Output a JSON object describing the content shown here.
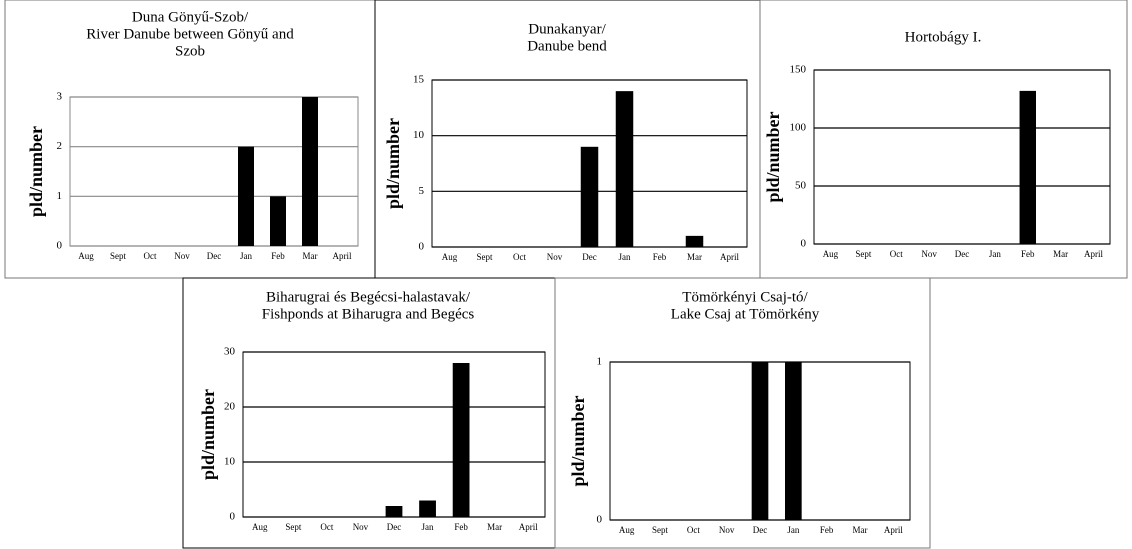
{
  "chart_data": [
    {
      "type": "bar",
      "title": [
        "Duna Gönyű-Szob/",
        "River Danube between Gönyű and",
        "Szob"
      ],
      "ylabel": "pld/number",
      "categories": [
        "Aug",
        "Sept",
        "Oct",
        "Nov",
        "Dec",
        "Jan",
        "Feb",
        "Mar",
        "April"
      ],
      "values": [
        0,
        0,
        0,
        0,
        0,
        2,
        1,
        3,
        0
      ],
      "color": "#000000",
      "ylim": [
        0,
        3
      ],
      "yticks": [
        0,
        1,
        2,
        3
      ],
      "grid": true
    },
    {
      "type": "bar",
      "title": [
        "Dunakanyar/",
        "Danube bend"
      ],
      "ylabel": "pld/number",
      "categories": [
        "Aug",
        "Sept",
        "Oct",
        "Nov",
        "Dec",
        "Jan",
        "Feb",
        "Mar",
        "April"
      ],
      "values": [
        0,
        0,
        0,
        0,
        9,
        14,
        0,
        1,
        0
      ],
      "color": "#000000",
      "ylim": [
        0,
        15
      ],
      "yticks": [
        0,
        5,
        10,
        15
      ],
      "grid": true
    },
    {
      "type": "bar",
      "title": [
        "Hortobágy I."
      ],
      "ylabel": "pld/number",
      "categories": [
        "Aug",
        "Sept",
        "Oct",
        "Nov",
        "Dec",
        "Jan",
        "Feb",
        "Mar",
        "April"
      ],
      "values": [
        0,
        0,
        0,
        0,
        0,
        0,
        132,
        0,
        0
      ],
      "color": "#000000",
      "ylim": [
        0,
        150
      ],
      "yticks": [
        0,
        50,
        100,
        150
      ],
      "grid": true
    },
    {
      "type": "bar",
      "title": [
        "Biharugrai és Begécsi-halastavak/",
        "Fishponds at Biharugra and Begécs"
      ],
      "ylabel": "pld/number",
      "categories": [
        "Aug",
        "Sept",
        "Oct",
        "Nov",
        "Dec",
        "Jan",
        "Feb",
        "Mar",
        "April"
      ],
      "values": [
        0,
        0,
        0,
        0,
        2,
        3,
        28,
        0,
        0
      ],
      "color": "#000000",
      "ylim": [
        0,
        30
      ],
      "yticks": [
        0,
        10,
        20,
        30
      ],
      "grid": true
    },
    {
      "type": "bar",
      "title": [
        "Tömörkényi Csaj-tó/",
        "Lake Csaj at Tömörkény"
      ],
      "ylabel": "pld/number",
      "categories": [
        "Aug",
        "Sept",
        "Oct",
        "Nov",
        "Dec",
        "Jan",
        "Feb",
        "Mar",
        "April"
      ],
      "values": [
        0,
        0,
        0,
        0,
        1,
        1,
        0,
        0,
        0
      ],
      "color": "#000000",
      "ylim": [
        0,
        1
      ],
      "yticks": [
        0,
        1
      ],
      "grid": true
    }
  ]
}
